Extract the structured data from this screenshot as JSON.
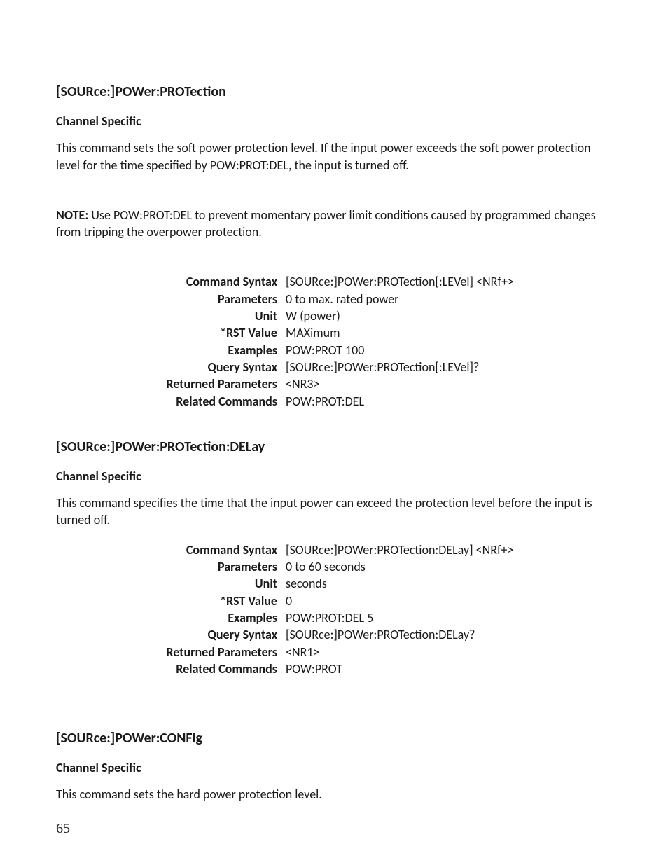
{
  "page_number": "65",
  "sections": [
    {
      "title": "[SOURce:]POWer:PROTection",
      "channel_specific": "Channel Specific",
      "description": "This command sets the soft power protection level. If the input power exceeds the soft power protection level for the time specified by POW:PROT:DEL, the input is turned off.",
      "note_label": "NOTE:",
      "note_text": " Use POW:PROT:DEL to prevent momentary power limit conditions caused by programmed changes from tripping the overpower protection.",
      "rows": {
        "command_syntax_label": "Command Syntax",
        "command_syntax_value": "[SOURce:]POWer:PROTection[:LEVel] <NRf+>",
        "parameters_label": "Parameters",
        "parameters_value": "0 to max. rated power",
        "unit_label": "Unit",
        "unit_value": "W (power)",
        "rst_label": "*RST Value",
        "rst_value": "MAXimum",
        "examples_label": "Examples",
        "examples_value": "POW:PROT 100",
        "query_label": "Query Syntax",
        "query_value": "[SOURce:]POWer:PROTection[:LEVel]?",
        "returned_label": "Returned Parameters",
        "returned_value": "<NR3>",
        "related_label": "Related Commands",
        "related_value": "POW:PROT:DEL"
      }
    },
    {
      "title": "[SOURce:]POWer:PROTection:DELay",
      "channel_specific": "Channel Specific",
      "description": "This command specifies the time that the input power can exceed the protection level before the input is turned off.",
      "rows": {
        "command_syntax_label": "Command Syntax",
        "command_syntax_value": "[SOURce:]POWer:PROTection:DELay] <NRf+>",
        "parameters_label": "Parameters",
        "parameters_value": "0 to 60 seconds",
        "unit_label": "Unit",
        "unit_value": "seconds",
        "rst_label": "*RST Value",
        "rst_value": "0",
        "examples_label": "Examples",
        "examples_value": "POW:PROT:DEL 5",
        "query_label": "Query Syntax",
        "query_value": "[SOURce:]POWer:PROTection:DELay?",
        "returned_label": "Returned Parameters",
        "returned_value": "<NR1>",
        "related_label": "Related Commands",
        "related_value": "POW:PROT"
      }
    },
    {
      "title": "[SOURce:]POWer:CONFig",
      "channel_specific": "Channel Specific",
      "description": "This command sets the hard power protection level."
    }
  ]
}
